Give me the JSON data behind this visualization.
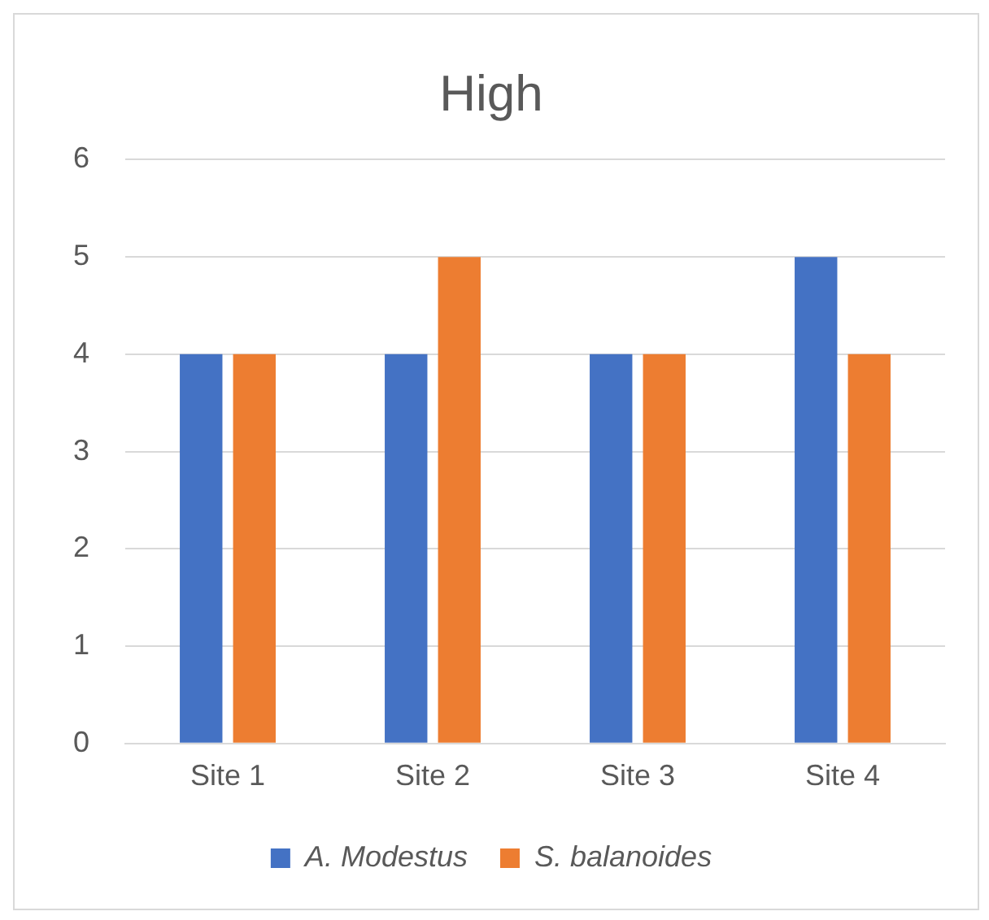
{
  "chart_data": {
    "type": "bar",
    "title": "High",
    "categories": [
      "Site 1",
      "Site 2",
      "Site 3",
      "Site 4"
    ],
    "series": [
      {
        "name": "A. Modestus",
        "color": "#4472c4",
        "values": [
          4,
          4,
          4,
          5
        ]
      },
      {
        "name": "S. balanoides",
        "color": "#ed7d31",
        "values": [
          4,
          5,
          4,
          4
        ]
      }
    ],
    "ylim": [
      0,
      6
    ],
    "yticks": [
      0,
      1,
      2,
      3,
      4,
      5,
      6
    ],
    "grid": "y",
    "legend": "bottom"
  }
}
